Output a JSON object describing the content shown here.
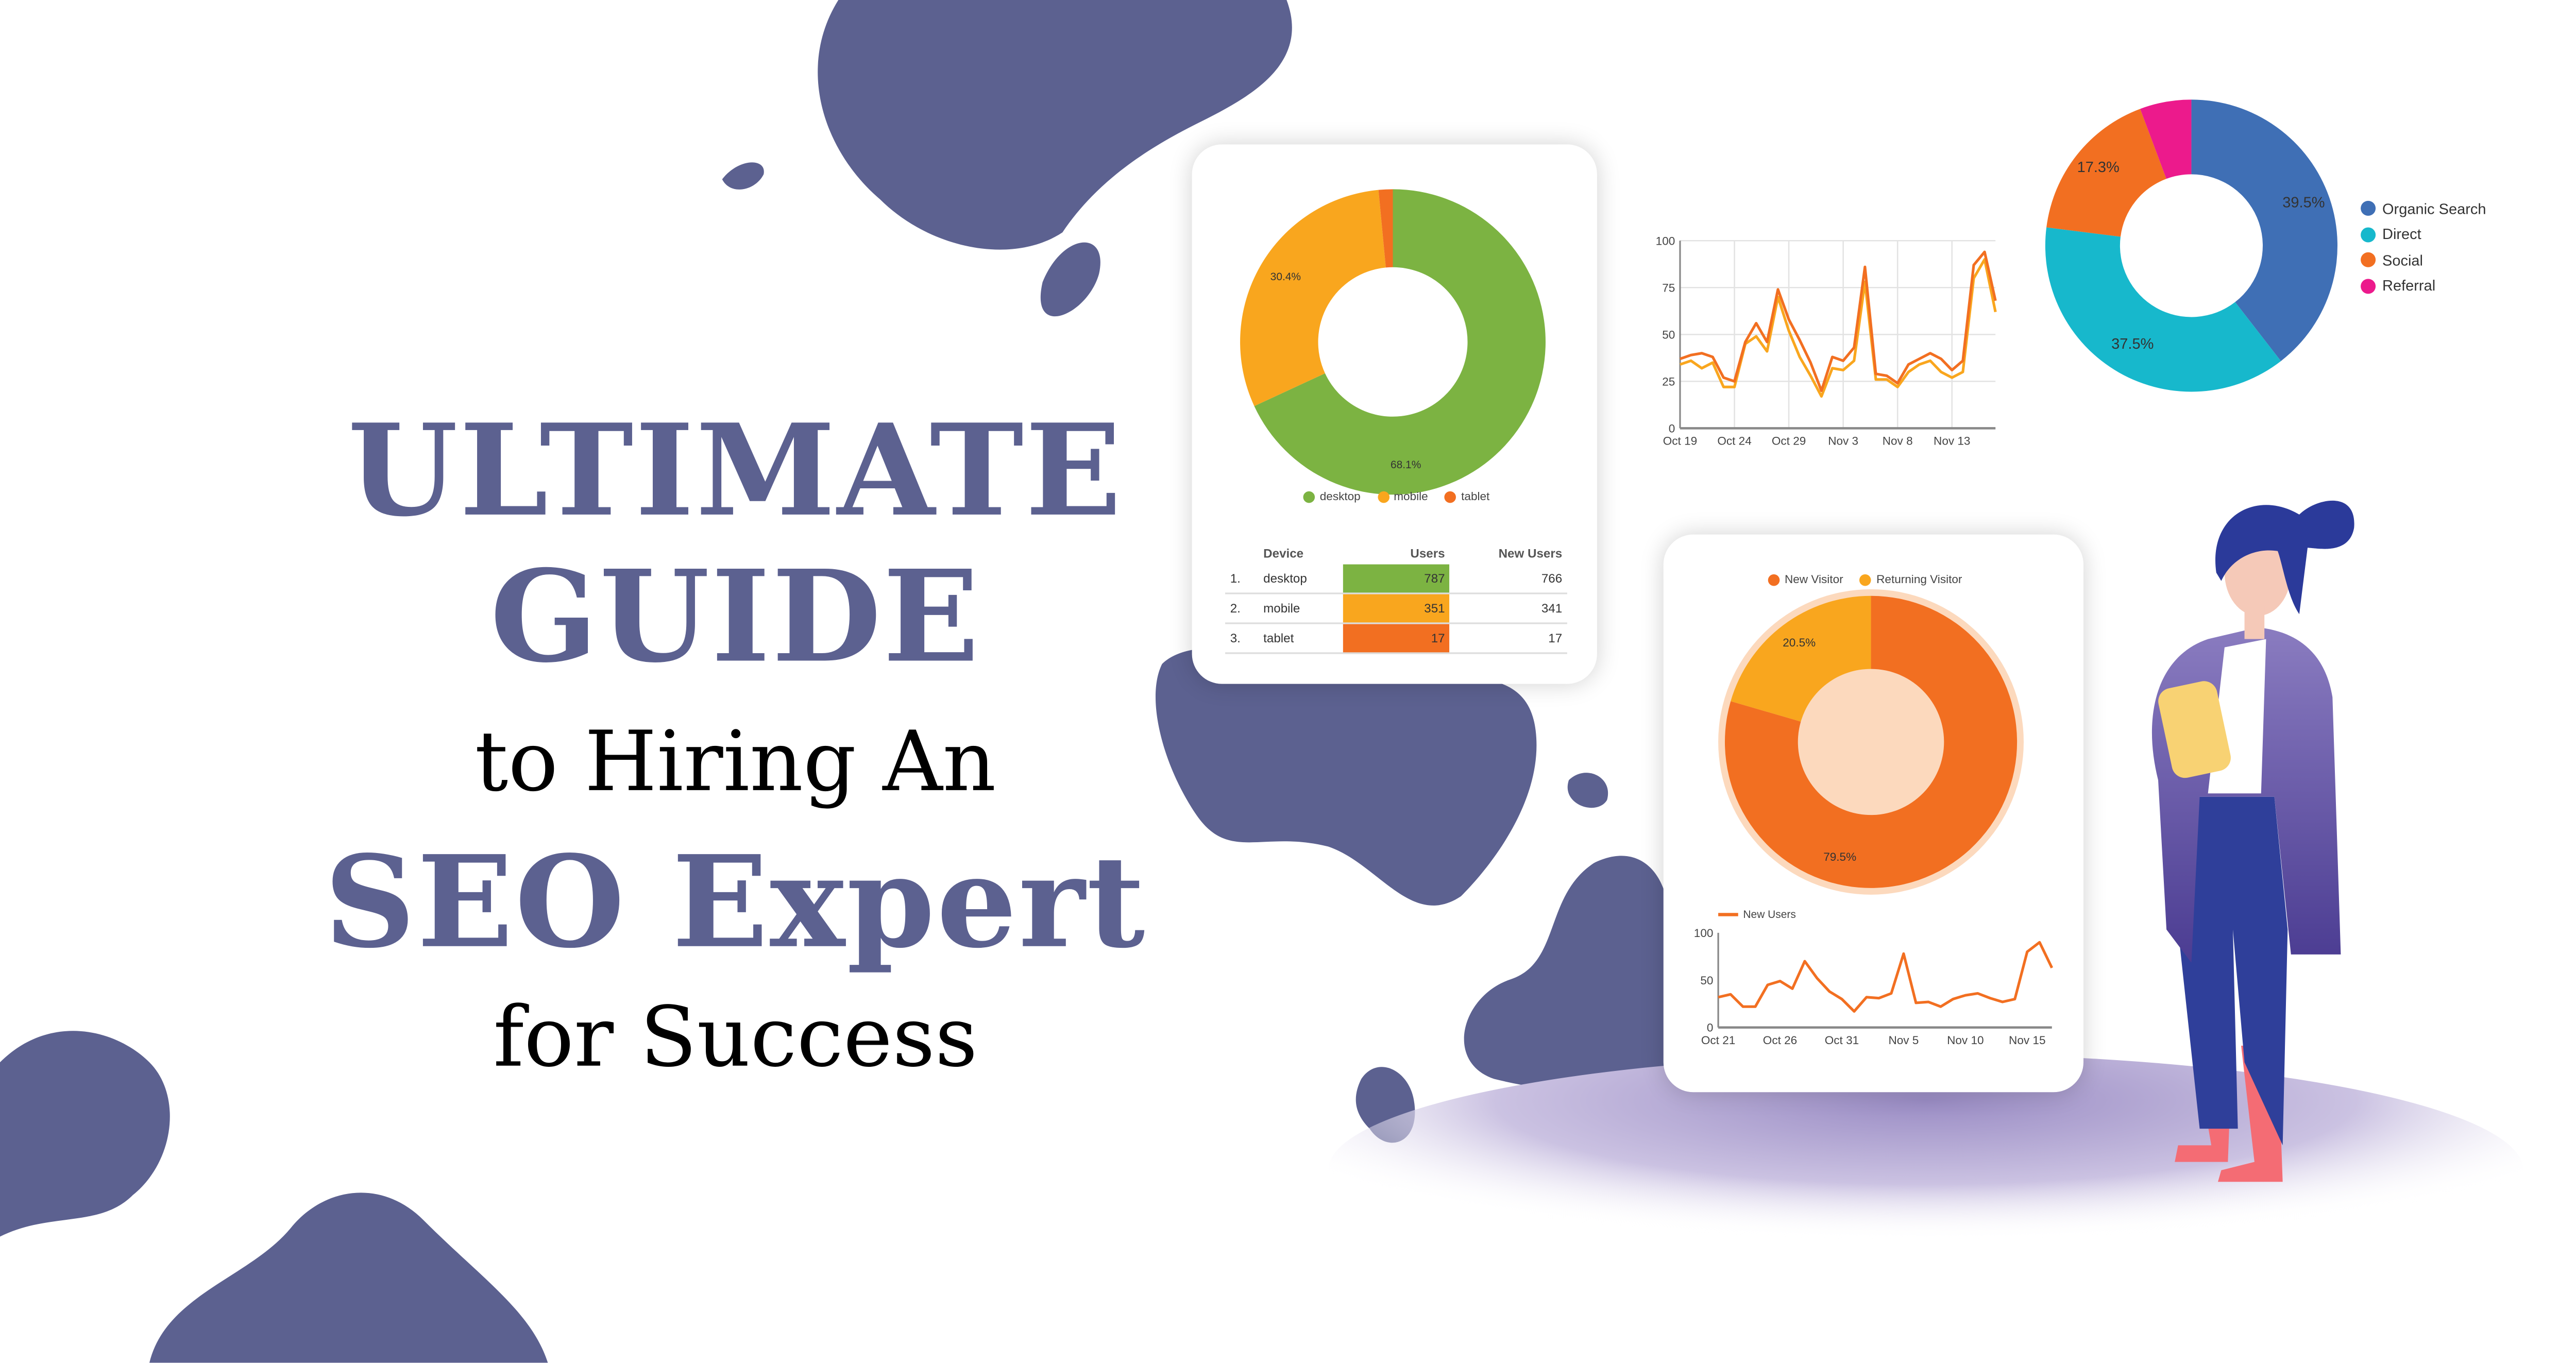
{
  "headline": {
    "line1": "ULTIMATE",
    "line2": "GUIDE",
    "line3": "to Hiring An",
    "line4": "SEO Expert",
    "line5": "for Success"
  },
  "colors": {
    "brand_purple": "#5c6190",
    "desktop": "#7cb342",
    "mobile": "#f9a61e",
    "tablet": "#f26f21",
    "organic": "#3f6fb5",
    "direct": "#17b8cc",
    "social": "#f26f21",
    "referral": "#ec1a8c"
  },
  "device_table": {
    "headers": [
      "Device",
      "Users",
      "New Users"
    ],
    "rows": [
      {
        "rank": "1.",
        "device": "desktop",
        "users": "787",
        "new_users": "766",
        "color": "#7cb342"
      },
      {
        "rank": "2.",
        "device": "mobile",
        "users": "351",
        "new_users": "341",
        "color": "#f9a61e"
      },
      {
        "rank": "3.",
        "device": "tablet",
        "users": "17",
        "new_users": "17",
        "color": "#f26f21"
      }
    ]
  },
  "chart_data": [
    {
      "type": "pie",
      "variant": "donut",
      "slices": [
        {
          "name": "desktop",
          "value": 68.1,
          "label": "68.1%",
          "color": "#7cb342"
        },
        {
          "name": "mobile",
          "value": 30.4,
          "label": "30.4%",
          "color": "#f9a61e"
        },
        {
          "name": "tablet",
          "value": 1.5,
          "label": "",
          "color": "#f26f21"
        }
      ],
      "legend": [
        "desktop",
        "mobile",
        "tablet"
      ],
      "legend_placement": "bottom"
    },
    {
      "type": "line",
      "x": [
        "Oct 19",
        "Oct 20",
        "Oct 21",
        "Oct 22",
        "Oct 23",
        "Oct 24",
        "Oct 25",
        "Oct 26",
        "Oct 27",
        "Oct 28",
        "Oct 29",
        "Oct 30",
        "Oct 31",
        "Nov 1",
        "Nov 2",
        "Nov 3",
        "Nov 4",
        "Nov 5",
        "Nov 6",
        "Nov 7",
        "Nov 8",
        "Nov 9",
        "Nov 10",
        "Nov 11",
        "Nov 12",
        "Nov 13",
        "Nov 14",
        "Nov 15",
        "Nov 16",
        "Nov 17"
      ],
      "x_ticks": [
        "Oct 19",
        "Oct 24",
        "Oct 29",
        "Nov 3",
        "Nov 8",
        "Nov 13"
      ],
      "y_ticks": [
        "0",
        "25",
        "50",
        "75",
        "100"
      ],
      "ylim": [
        0,
        100
      ],
      "grid": true,
      "series": [
        {
          "color": "#f26f21",
          "values": [
            37,
            39,
            40,
            38,
            27,
            25,
            46,
            56,
            46,
            74,
            58,
            47,
            35,
            20,
            38,
            36,
            43,
            86,
            29,
            28,
            24,
            34,
            37,
            40,
            37,
            31,
            36,
            87,
            94,
            68
          ]
        },
        {
          "color": "#f9a61e",
          "values": [
            34,
            36,
            32,
            35,
            22,
            22,
            45,
            49,
            41,
            70,
            52,
            38,
            28,
            17,
            32,
            31,
            36,
            78,
            26,
            26,
            22,
            30,
            34,
            36,
            30,
            27,
            30,
            80,
            90,
            62
          ]
        }
      ]
    },
    {
      "type": "pie",
      "variant": "donut",
      "slices": [
        {
          "name": "Organic Search",
          "value": 39.5,
          "label": "39.5%",
          "color": "#3f6fb5"
        },
        {
          "name": "Direct",
          "value": 37.5,
          "label": "37.5%",
          "color": "#17b8cc"
        },
        {
          "name": "Social",
          "value": 17.3,
          "label": "17.3%",
          "color": "#f26f21"
        },
        {
          "name": "Referral",
          "value": 5.7,
          "label": "",
          "color": "#ec1a8c"
        }
      ],
      "legend": [
        "Organic Search",
        "Direct",
        "Social",
        "Referral"
      ],
      "legend_placement": "right"
    },
    {
      "type": "pie",
      "variant": "donut",
      "slices": [
        {
          "name": "New Visitor",
          "value": 79.5,
          "label": "79.5%",
          "color": "#f26f21"
        },
        {
          "name": "Returning Visitor",
          "value": 20.5,
          "label": "20.5%",
          "color": "#f9a61e"
        }
      ],
      "legend": [
        "New Visitor",
        "Returning Visitor"
      ],
      "legend_placement": "top"
    },
    {
      "type": "line",
      "x": [
        "Oct 21",
        "Oct 22",
        "Oct 23",
        "Oct 24",
        "Oct 25",
        "Oct 26",
        "Oct 27",
        "Oct 28",
        "Oct 29",
        "Oct 30",
        "Oct 31",
        "Nov 1",
        "Nov 2",
        "Nov 3",
        "Nov 4",
        "Nov 5",
        "Nov 6",
        "Nov 7",
        "Nov 8",
        "Nov 9",
        "Nov 10",
        "Nov 11",
        "Nov 12",
        "Nov 13",
        "Nov 14",
        "Nov 15",
        "Nov 16",
        "Nov 17"
      ],
      "x_ticks": [
        "Oct 21",
        "Oct 26",
        "Oct 31",
        "Nov 5",
        "Nov 10",
        "Nov 15"
      ],
      "y_ticks": [
        "0",
        "50",
        "100"
      ],
      "ylim": [
        0,
        100
      ],
      "grid": false,
      "series": [
        {
          "name": "New Users",
          "color": "#f26f21",
          "values": [
            32,
            35,
            22,
            22,
            45,
            49,
            41,
            70,
            52,
            38,
            30,
            17,
            32,
            31,
            36,
            78,
            26,
            27,
            22,
            30,
            34,
            36,
            31,
            27,
            30,
            80,
            90,
            63
          ]
        }
      ],
      "legend_placement": "top-left"
    }
  ]
}
